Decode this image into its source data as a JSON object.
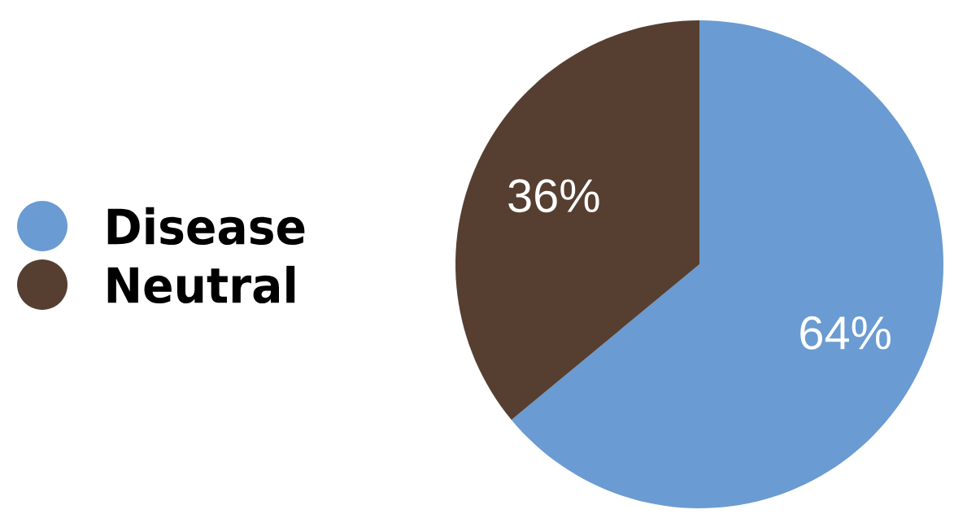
{
  "chart_data": {
    "type": "pie",
    "categories": [
      "Disease",
      "Neutral"
    ],
    "values": [
      64,
      36
    ],
    "colors": [
      "#6a9bd2",
      "#563f31"
    ],
    "value_labels": [
      "64%",
      "36%"
    ],
    "legend": "left"
  }
}
